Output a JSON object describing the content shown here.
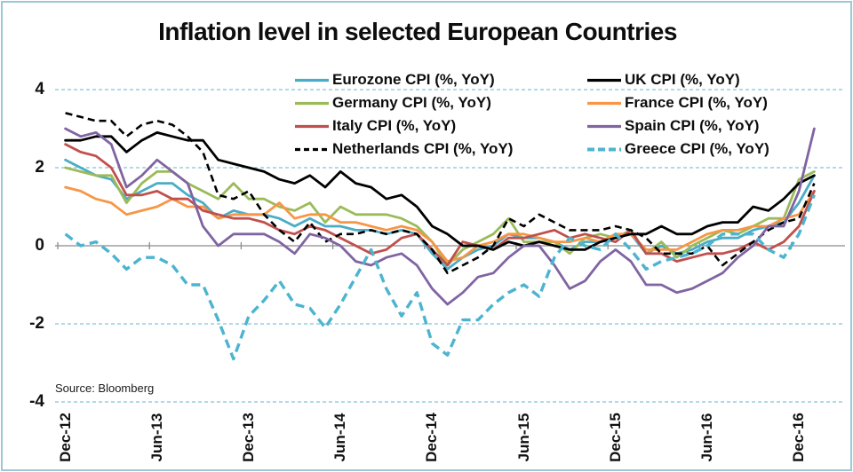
{
  "title": "Inflation level in selected European Countries",
  "source": "Source: Bloomberg",
  "style": {
    "frame_border_color": "#9cc6d9",
    "gridline_color": "#7fc4dc",
    "zero_axis_color": "#8c8c8c",
    "background_color": "#ffffff",
    "text_color": "#0d0d0d"
  },
  "y_axis": {
    "tick_labels": [
      "4",
      "2",
      "0",
      "-2",
      "-4"
    ],
    "tick_values": [
      4,
      2,
      0,
      -2,
      -4
    ]
  },
  "x_axis": {
    "tick_labels": [
      "Dec-12",
      "Jun-13",
      "Dec-13",
      "Jun-14",
      "Dec-14",
      "Jun-15",
      "Dec-15",
      "Jun-16",
      "Dec-16"
    ],
    "tick_month_indices": [
      0,
      6,
      12,
      18,
      24,
      30,
      36,
      42,
      48
    ]
  },
  "chart_data": {
    "type": "line",
    "title": "Inflation level in selected European Countries",
    "ylabel": "CPI (%, YoY)",
    "ylim": [
      -4,
      4
    ],
    "grid": {
      "horizontal_dashed_at": [
        4,
        2,
        -2,
        -4
      ],
      "zero_axis_solid": true
    },
    "legend_position": "top-inside-two-columns",
    "x": [
      "Dec-12",
      "Jan-13",
      "Feb-13",
      "Mar-13",
      "Apr-13",
      "May-13",
      "Jun-13",
      "Jul-13",
      "Aug-13",
      "Sep-13",
      "Oct-13",
      "Nov-13",
      "Dec-13",
      "Jan-14",
      "Feb-14",
      "Mar-14",
      "Apr-14",
      "May-14",
      "Jun-14",
      "Jul-14",
      "Aug-14",
      "Sep-14",
      "Oct-14",
      "Nov-14",
      "Dec-14",
      "Jan-15",
      "Feb-15",
      "Mar-15",
      "Apr-15",
      "May-15",
      "Jun-15",
      "Jul-15",
      "Aug-15",
      "Sep-15",
      "Oct-15",
      "Nov-15",
      "Dec-15",
      "Jan-16",
      "Feb-16",
      "Mar-16",
      "Apr-16",
      "May-16",
      "Jun-16",
      "Jul-16",
      "Aug-16",
      "Sep-16",
      "Oct-16",
      "Nov-16",
      "Dec-16",
      "Jan-17"
    ],
    "series": [
      {
        "id": "eurozone",
        "name": "Eurozone CPI (%, YoY)",
        "color": "#4BACC6",
        "line_style": "solid",
        "values": [
          2.2,
          2.0,
          1.8,
          1.7,
          1.2,
          1.4,
          1.6,
          1.6,
          1.3,
          1.1,
          0.7,
          0.9,
          0.8,
          0.8,
          0.7,
          0.5,
          0.7,
          0.5,
          0.5,
          0.4,
          0.4,
          0.3,
          0.4,
          0.3,
          -0.2,
          -0.6,
          -0.3,
          -0.1,
          0.0,
          0.3,
          0.2,
          0.2,
          0.1,
          -0.1,
          0.1,
          0.1,
          0.2,
          0.3,
          -0.2,
          0.0,
          -0.2,
          -0.1,
          0.1,
          0.2,
          0.2,
          0.4,
          0.5,
          0.6,
          1.1,
          1.8
        ]
      },
      {
        "id": "uk",
        "name": "UK CPI (%, YoY)",
        "color": "#000000",
        "line_style": "solid",
        "values": [
          2.7,
          2.7,
          2.8,
          2.8,
          2.4,
          2.7,
          2.9,
          2.8,
          2.7,
          2.7,
          2.2,
          2.1,
          2.0,
          1.9,
          1.7,
          1.6,
          1.8,
          1.5,
          1.9,
          1.6,
          1.5,
          1.2,
          1.3,
          1.0,
          0.5,
          0.3,
          0.0,
          0.0,
          -0.1,
          0.1,
          0.0,
          0.1,
          0.0,
          -0.1,
          -0.1,
          0.1,
          0.2,
          0.3,
          0.3,
          0.5,
          0.3,
          0.3,
          0.5,
          0.6,
          0.6,
          1.0,
          0.9,
          1.2,
          1.6,
          1.8
        ]
      },
      {
        "id": "germany",
        "name": "Germany CPI (%, YoY)",
        "color": "#9BBB59",
        "line_style": "solid",
        "values": [
          2.0,
          1.9,
          1.8,
          1.8,
          1.1,
          1.6,
          1.9,
          1.9,
          1.6,
          1.4,
          1.2,
          1.6,
          1.2,
          1.2,
          1.0,
          0.9,
          1.1,
          0.6,
          1.0,
          0.8,
          0.8,
          0.8,
          0.7,
          0.5,
          0.1,
          -0.5,
          -0.1,
          0.1,
          0.3,
          0.7,
          0.1,
          0.1,
          0.1,
          -0.2,
          0.2,
          0.3,
          0.2,
          0.4,
          -0.2,
          0.1,
          -0.3,
          0.0,
          0.2,
          0.4,
          0.3,
          0.5,
          0.7,
          0.7,
          1.7,
          1.9
        ]
      },
      {
        "id": "france",
        "name": "France CPI (%, YoY)",
        "color": "#F79646",
        "line_style": "solid",
        "values": [
          1.5,
          1.4,
          1.2,
          1.1,
          0.8,
          0.9,
          1.0,
          1.2,
          1.0,
          1.0,
          0.7,
          0.8,
          0.8,
          0.8,
          1.1,
          0.7,
          0.8,
          0.8,
          0.6,
          0.6,
          0.5,
          0.4,
          0.5,
          0.4,
          0.1,
          -0.4,
          -0.3,
          0.0,
          0.1,
          0.3,
          0.3,
          0.2,
          0.1,
          0.1,
          0.2,
          0.1,
          0.3,
          0.3,
          -0.1,
          -0.1,
          -0.1,
          0.1,
          0.3,
          0.4,
          0.4,
          0.5,
          0.5,
          0.7,
          0.8,
          1.4
        ]
      },
      {
        "id": "italy",
        "name": "Italy CPI (%, YoY)",
        "color": "#C0504D",
        "line_style": "solid",
        "values": [
          2.6,
          2.4,
          2.3,
          2.0,
          1.3,
          1.3,
          1.4,
          1.2,
          1.2,
          0.9,
          0.8,
          0.7,
          0.7,
          0.6,
          0.4,
          0.3,
          0.5,
          0.4,
          0.2,
          0.0,
          -0.2,
          -0.1,
          0.2,
          0.3,
          -0.1,
          -0.5,
          0.1,
          0.0,
          -0.1,
          0.2,
          0.2,
          0.3,
          0.4,
          0.2,
          0.3,
          0.2,
          0.1,
          0.4,
          -0.2,
          -0.2,
          -0.4,
          -0.3,
          -0.2,
          -0.2,
          -0.1,
          0.1,
          -0.1,
          0.1,
          0.5,
          1.4
        ]
      },
      {
        "id": "spain",
        "name": "Spain CPI (%, YoY)",
        "color": "#8064A2",
        "line_style": "solid",
        "values": [
          3.0,
          2.8,
          2.9,
          2.6,
          1.5,
          1.8,
          2.2,
          1.9,
          1.6,
          0.5,
          0.0,
          0.3,
          0.3,
          0.3,
          0.1,
          -0.2,
          0.3,
          0.2,
          0.0,
          -0.4,
          -0.5,
          -0.3,
          -0.2,
          -0.5,
          -1.1,
          -1.5,
          -1.2,
          -0.8,
          -0.7,
          -0.3,
          0.0,
          0.0,
          -0.5,
          -1.1,
          -0.9,
          -0.4,
          -0.1,
          -0.4,
          -1.0,
          -1.0,
          -1.2,
          -1.1,
          -0.9,
          -0.7,
          -0.3,
          0.0,
          0.5,
          0.5,
          1.4,
          3.0
        ]
      },
      {
        "id": "netherlands",
        "name": "Netherlands CPI (%, YoY)",
        "color": "#000000",
        "line_style": "dashed",
        "values": [
          3.4,
          3.3,
          3.2,
          3.2,
          2.8,
          3.1,
          3.2,
          3.1,
          2.8,
          2.4,
          1.3,
          1.2,
          1.4,
          0.8,
          0.4,
          0.1,
          0.6,
          0.1,
          0.3,
          0.3,
          0.4,
          0.3,
          0.4,
          0.3,
          -0.1,
          -0.7,
          -0.5,
          -0.3,
          0.0,
          0.7,
          0.5,
          0.8,
          0.6,
          0.4,
          0.4,
          0.4,
          0.5,
          0.4,
          0.2,
          -0.2,
          -0.2,
          -0.2,
          0.0,
          -0.5,
          -0.2,
          0.1,
          0.4,
          0.6,
          0.7,
          1.6
        ]
      },
      {
        "id": "greece",
        "name": "Greece CPI (%, YoY)",
        "color": "#4CB4CF",
        "line_style": "dashed",
        "values": [
          0.3,
          0.0,
          0.1,
          -0.2,
          -0.6,
          -0.3,
          -0.3,
          -0.5,
          -1.0,
          -1.0,
          -1.9,
          -2.9,
          -1.8,
          -1.4,
          -0.9,
          -1.5,
          -1.6,
          -2.1,
          -1.5,
          -0.8,
          -0.1,
          -1.1,
          -1.8,
          -1.2,
          -2.5,
          -2.8,
          -1.9,
          -1.9,
          -1.5,
          -1.2,
          -1.0,
          -1.3,
          -0.3,
          0.2,
          0.0,
          -0.1,
          0.3,
          -0.1,
          -0.6,
          -0.4,
          -0.3,
          -0.2,
          0.0,
          0.3,
          0.3,
          0.3,
          -0.1,
          -0.3,
          0.3,
          1.3
        ]
      }
    ]
  }
}
